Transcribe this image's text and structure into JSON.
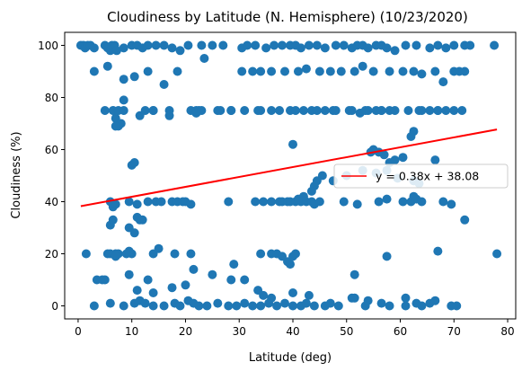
{
  "chart_data": {
    "type": "scatter",
    "title": "Cloudiness by Latitude (N. Hemisphere) (10/23/2020)",
    "xlabel": "Latitude (deg)",
    "ylabel": "Cloudiness (%)",
    "xlim": [
      -2.5,
      81.5
    ],
    "ylim": [
      -5,
      105
    ],
    "xticks": [
      0,
      10,
      20,
      30,
      40,
      50,
      60,
      70,
      80
    ],
    "yticks": [
      0,
      20,
      40,
      60,
      80,
      100
    ],
    "grid": false,
    "legend_position": "center-right",
    "colors": {
      "points": "#1f77b4",
      "regression": "#ff0000"
    },
    "series": [
      {
        "kind": "scatter",
        "x": [
          0.5,
          1.0,
          1.3,
          1.8,
          2.3,
          3.0,
          5.0,
          5.5,
          6.0,
          6.3,
          6.8,
          7.2,
          8.5,
          10.0,
          11.0,
          12.0,
          13.0,
          14.5,
          16.0,
          17.5,
          19.0,
          20.5,
          23.0,
          25.0,
          27.0,
          30.5,
          31.5,
          33.0,
          35.0,
          36.5,
          38.0,
          39.5,
          40.5,
          41.5,
          43.0,
          44.5,
          46.0,
          48.0,
          49.5,
          51.0,
          52.0,
          53.0,
          54.0,
          55.5,
          56.5,
          57.5,
          59.0,
          61.0,
          63.0,
          65.5,
          67.0,
          68.5,
          70.0,
          72.0,
          73.0,
          77.5,
          3.0,
          5.5,
          8.5,
          10.5,
          13.0,
          16.0,
          18.5,
          23.5,
          30.5,
          32.5,
          34.0,
          36.0,
          38.5,
          41.0,
          42.5,
          45.0,
          47.0,
          49.0,
          51.5,
          53.0,
          55.0,
          58.0,
          60.5,
          62.5,
          64.0,
          66.5,
          68.0,
          70.0,
          71.0,
          72.0,
          5.0,
          6.5,
          7.5,
          8.5,
          12.5,
          14.0,
          17.0,
          22.0,
          22.5,
          26.0,
          28.5,
          34.0,
          36.0,
          42.0,
          43.5,
          47.5,
          50.5,
          54.0,
          56.5,
          58.0,
          63.5,
          67.0,
          7.0,
          7.5,
          8.0,
          8.5,
          11.5,
          14.0,
          17.0,
          21.0,
          22.0,
          23.0,
          26.5,
          28.5,
          31.0,
          33.5,
          37.5,
          39.5,
          40.5,
          44.5,
          46.0,
          48.0,
          51.0,
          52.5,
          53.5,
          55.5,
          56.5,
          59.0,
          61.5,
          64.0,
          65.5,
          67.0,
          68.5,
          70.0,
          71.5,
          7.0,
          40.0,
          56.0,
          62.0,
          62.5,
          54.5,
          55.0,
          57.0,
          58.0,
          59.0,
          60.5,
          66.5,
          10.0,
          10.5,
          50.0,
          53.0,
          55.5,
          57.5,
          59.5,
          62.5,
          63.5,
          6.0,
          6.5,
          7.0,
          9.5,
          11.0,
          13.0,
          14.5,
          15.5,
          17.5,
          18.5,
          19.5,
          20.0,
          21.0,
          28.0,
          33.0,
          34.5,
          36.0,
          37.5,
          38.0,
          39.0,
          39.5,
          40.5,
          41.5,
          42.5,
          43.5,
          44.0,
          45.0,
          49.5,
          52.0,
          56.0,
          57.5,
          60.5,
          62.0,
          62.5,
          63.0,
          64.0,
          68.0,
          69.5,
          47.5,
          45.5,
          44.5,
          44.0,
          43.5,
          42.0,
          41.0,
          9.5,
          10.5,
          11.5,
          6.0,
          6.5,
          11.0,
          12.0,
          5.5,
          7.0,
          7.5,
          9.0,
          10.0,
          1.5,
          6.0,
          7.0,
          9.5,
          14.0,
          15.0,
          18.0,
          21.0,
          29.0,
          34.0,
          36.0,
          37.0,
          38.0,
          39.0,
          39.5,
          40.0,
          40.5,
          51.5,
          57.5,
          67.0,
          3.5,
          4.5,
          5.0,
          9.5,
          11.0,
          13.0,
          14.0,
          17.5,
          20.0,
          21.5,
          25.0,
          28.5,
          31.0,
          3.0,
          6.0,
          8.5,
          10.5,
          11.5,
          12.5,
          14.0,
          16.0,
          18.0,
          19.0,
          20.5,
          21.5,
          22.5,
          24.0,
          26.0,
          28.0,
          29.5,
          31.0,
          32.5,
          34.0,
          35.5,
          37.0,
          38.5,
          40.0,
          41.5,
          42.5,
          44.0,
          46.0,
          47.0,
          48.5,
          51.0,
          53.5,
          56.5,
          58.0,
          61.0,
          63.0,
          64.0,
          65.5,
          66.5,
          69.5,
          70.5,
          33.5,
          34.5,
          36.0,
          40.0,
          43.0,
          51.5,
          54.0,
          61.0,
          72.0,
          78.0
        ],
        "y": [
          100,
          100,
          99,
          100,
          100,
          99,
          100,
          99,
          98,
          100,
          100,
          98,
          99,
          100,
          100,
          99,
          100,
          100,
          100,
          99,
          98,
          100,
          100,
          100,
          100,
          99,
          100,
          100,
          99,
          100,
          100,
          100,
          100,
          99,
          100,
          100,
          99,
          100,
          100,
          99,
          100,
          100,
          99,
          100,
          100,
          99,
          98,
          100,
          100,
          99,
          100,
          99,
          100,
          100,
          100,
          100,
          90,
          92,
          87,
          88,
          90,
          85,
          90,
          95,
          90,
          90,
          90,
          90,
          90,
          90,
          91,
          90,
          90,
          90,
          90,
          92,
          90,
          90,
          90,
          90,
          89,
          90,
          86,
          90,
          90,
          90,
          75,
          75,
          75,
          75,
          75,
          75,
          75,
          75,
          75,
          75,
          75,
          75,
          75,
          75,
          75,
          75,
          75,
          75,
          75,
          75,
          75,
          75,
          72,
          69,
          70,
          79,
          73,
          75,
          73,
          75,
          74,
          75,
          75,
          75,
          75,
          75,
          75,
          75,
          75,
          75,
          75,
          75,
          75,
          74,
          75,
          75,
          75,
          75,
          75,
          75,
          75,
          75,
          75,
          75,
          75,
          69,
          62,
          59,
          65,
          67,
          59,
          60,
          58,
          55,
          56,
          57,
          56,
          54,
          55,
          50,
          52,
          51,
          52,
          49,
          48,
          47,
          40,
          38,
          39,
          40,
          39,
          40,
          40,
          40,
          40,
          40,
          40,
          40,
          39,
          40,
          40,
          40,
          40,
          40,
          40,
          40,
          40,
          40,
          40,
          40,
          40,
          39,
          40,
          40,
          39,
          40,
          41,
          40,
          40,
          42,
          41,
          40,
          40,
          39,
          48,
          50,
          48,
          46,
          44,
          42,
          41,
          30,
          28,
          33,
          31,
          33,
          34,
          33,
          20,
          20,
          20,
          20,
          20,
          20,
          20,
          19,
          21,
          20,
          22,
          20,
          20,
          16,
          20,
          20,
          20,
          19,
          17,
          16,
          19,
          20,
          12,
          19,
          21,
          10,
          10,
          10,
          12,
          6,
          10,
          5,
          7,
          8,
          14,
          12,
          10,
          10,
          0,
          1,
          0,
          1,
          2,
          1,
          0,
          0,
          1,
          0,
          2,
          1,
          0,
          0,
          1,
          0,
          0,
          1,
          0,
          0,
          1,
          0,
          1,
          0,
          0,
          1,
          0,
          0,
          1,
          0,
          3,
          0,
          1,
          0,
          0,
          1,
          0,
          1,
          2,
          0,
          0,
          6,
          4,
          3,
          5,
          4,
          3,
          2,
          3,
          33,
          20
        ]
      },
      {
        "kind": "line",
        "name": "y = 0.38x + 38.08",
        "slope": 0.38,
        "intercept": 38.08,
        "x_range": [
          0.5,
          78.0
        ]
      }
    ]
  }
}
